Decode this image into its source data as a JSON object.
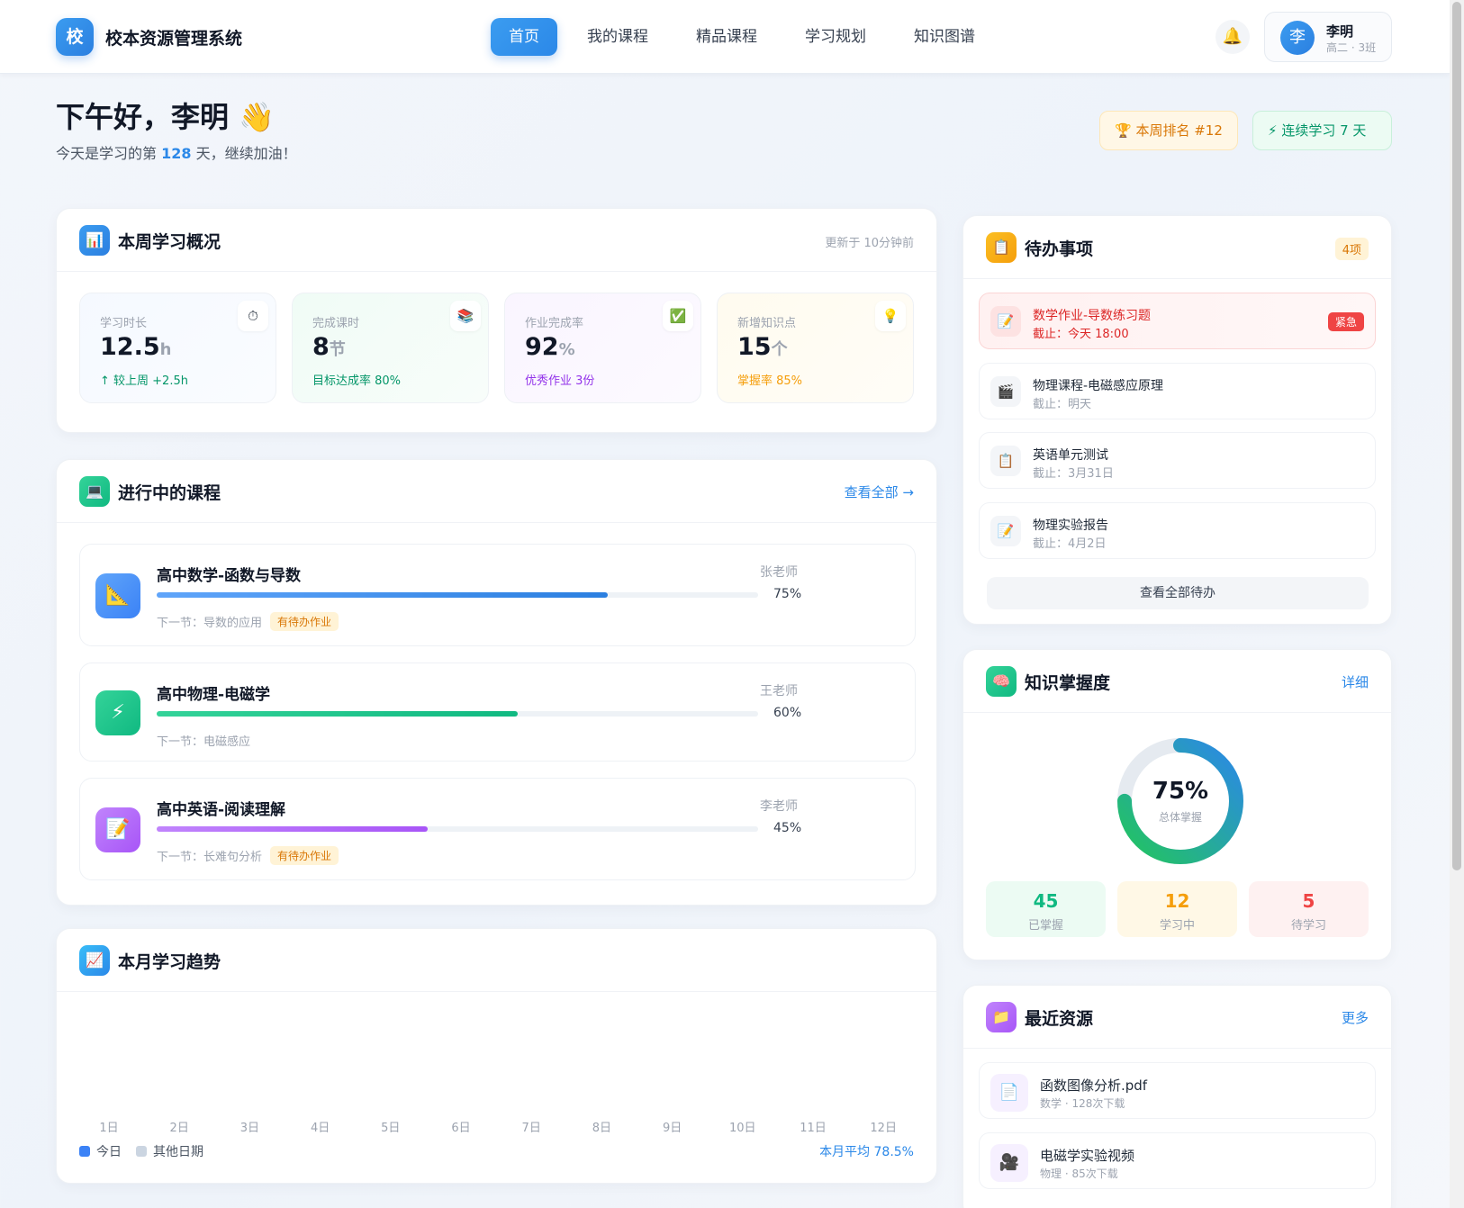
{
  "app": {
    "logo_char": "校",
    "title": "校本资源管理系统"
  },
  "nav": [
    "首页",
    "我的课程",
    "精品课程",
    "学习规划",
    "知识图谱"
  ],
  "user": {
    "avatar_char": "李",
    "name": "李明",
    "class": "高二 · 3班"
  },
  "greeting": {
    "title": "下午好，李明 👋",
    "pre": "今天是学习的第 ",
    "days": "128",
    "post": " 天，继续加油！"
  },
  "badges": {
    "rank": "本周排名 #12",
    "streak": "连续学习 7 天"
  },
  "weekly": {
    "title": "本周学习概况",
    "updated": "更新于 10分钟前",
    "stats": [
      {
        "label": "学习时长",
        "value": "12.5",
        "unit": "h",
        "note": "↑ 较上周 +2.5h",
        "icon": "⏱",
        "icon_name": "stopwatch-icon",
        "note_color": "#059669"
      },
      {
        "label": "完成课时",
        "value": "8",
        "unit": "节",
        "note": "目标达成率 80%",
        "icon": "📚",
        "icon_name": "books-icon",
        "note_color": "#059669"
      },
      {
        "label": "作业完成率",
        "value": "92",
        "unit": "%",
        "note": "优秀作业 3份",
        "icon": "✅",
        "icon_name": "check-icon",
        "note_color": "#9333ea"
      },
      {
        "label": "新增知识点",
        "value": "15",
        "unit": "个",
        "note": "掌握率 85%",
        "icon": "💡",
        "icon_name": "lightbulb-icon",
        "note_color": "#f59e0b"
      }
    ]
  },
  "courses": {
    "title": "进行中的课程",
    "link": "查看全部 →",
    "items": [
      {
        "title": "高中数学-函数与导数",
        "teacher": "张老师",
        "progress": 75,
        "pct": "75%",
        "next": "下一节：导数的应用",
        "tag": "有待办作业",
        "icon": "📐",
        "icon_name": "ruler-icon",
        "color": "#3b9cf0"
      },
      {
        "title": "高中物理-电磁学",
        "teacher": "王老师",
        "progress": 60,
        "pct": "60%",
        "next": "下一节：电磁感应",
        "tag": "",
        "icon": "⚡",
        "icon_name": "lightning-icon",
        "color": "#22c08a"
      },
      {
        "title": "高中英语-阅读理解",
        "teacher": "李老师",
        "progress": 45,
        "pct": "45%",
        "next": "下一节：长难句分析",
        "tag": "有待办作业",
        "icon": "📝",
        "icon_name": "memo-icon",
        "color": "#a855f7"
      }
    ]
  },
  "trend": {
    "title": "本月学习趋势",
    "days": [
      "1日",
      "2日",
      "3日",
      "4日",
      "5日",
      "6日",
      "7日",
      "8日",
      "9日",
      "10日",
      "11日",
      "12日"
    ],
    "legend_today": "今日",
    "legend_other": "其他日期",
    "avg": "本月平均 78.5%"
  },
  "todos": {
    "title": "待办事项",
    "count": "4项",
    "items": [
      {
        "title": "数学作业-导数练习题",
        "due": "截止：今天 18:00",
        "urgent": true,
        "badge": "紧急",
        "icon": "📝"
      },
      {
        "title": "物理课程-电磁感应原理",
        "due": "截止：明天",
        "urgent": false,
        "badge": "",
        "icon": "🎬"
      },
      {
        "title": "英语单元测试",
        "due": "截止：3月31日",
        "urgent": false,
        "badge": "",
        "icon": "📋"
      },
      {
        "title": "物理实验报告",
        "due": "截止：4月2日",
        "urgent": false,
        "badge": "",
        "icon": "📝"
      }
    ],
    "all": "查看全部待办"
  },
  "knowledge": {
    "title": "知识掌握度",
    "link": "详细",
    "mastery": 75,
    "pct": "75%",
    "label": "总体掌握",
    "stats": [
      {
        "num": "45",
        "label": "已掌握",
        "color": "#10b981",
        "bg": "#ecfbf3"
      },
      {
        "num": "12",
        "label": "学习中",
        "color": "#f59e0b",
        "bg": "#fff8e6"
      },
      {
        "num": "5",
        "label": "待学习",
        "color": "#ef4444",
        "bg": "#fef1f1"
      }
    ]
  },
  "resources": {
    "title": "最近资源",
    "link": "更多",
    "items": [
      {
        "name": "函数图像分析.pdf",
        "meta": "数学 · 128次下载",
        "icon": "📄",
        "icon_name": "pdf-file-icon"
      },
      {
        "name": "电磁学实验视频",
        "meta": "物理 · 85次下载",
        "icon": "🎥",
        "icon_name": "video-icon"
      }
    ]
  }
}
